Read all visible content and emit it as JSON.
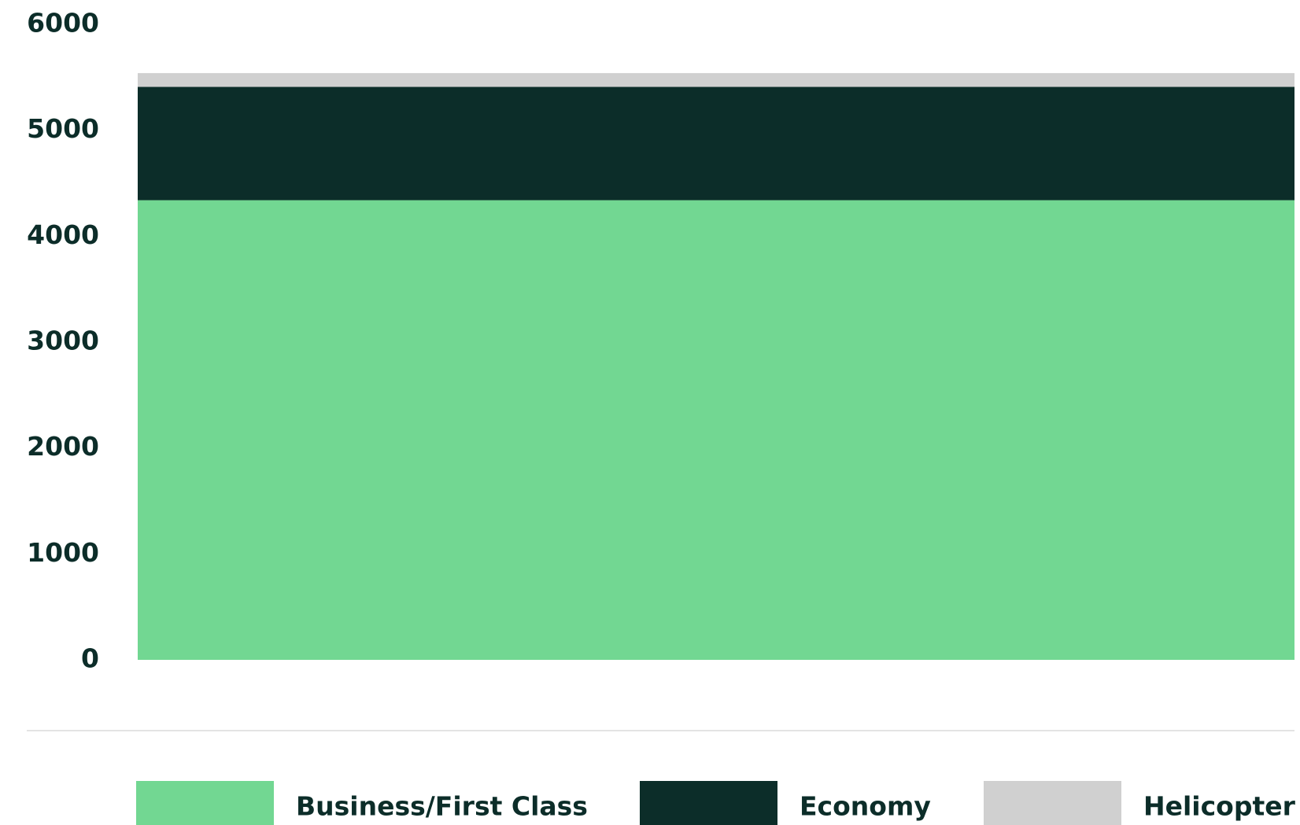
{
  "chart_data": {
    "type": "bar",
    "stacked": true,
    "categories": [
      null
    ],
    "series": [
      {
        "name": "Business/First Class",
        "color": "#72d792",
        "values": [
          4340
        ]
      },
      {
        "name": "Economy",
        "color": "#0c2d29",
        "values": [
          1070
        ]
      },
      {
        "name": "Helicopter",
        "color": "#d0d0d0",
        "values": [
          130
        ]
      }
    ],
    "ylim": [
      0,
      6000
    ],
    "yticks": [
      0,
      1000,
      2000,
      3000,
      4000,
      5000,
      6000
    ],
    "grid": false,
    "legend": "bottom"
  }
}
